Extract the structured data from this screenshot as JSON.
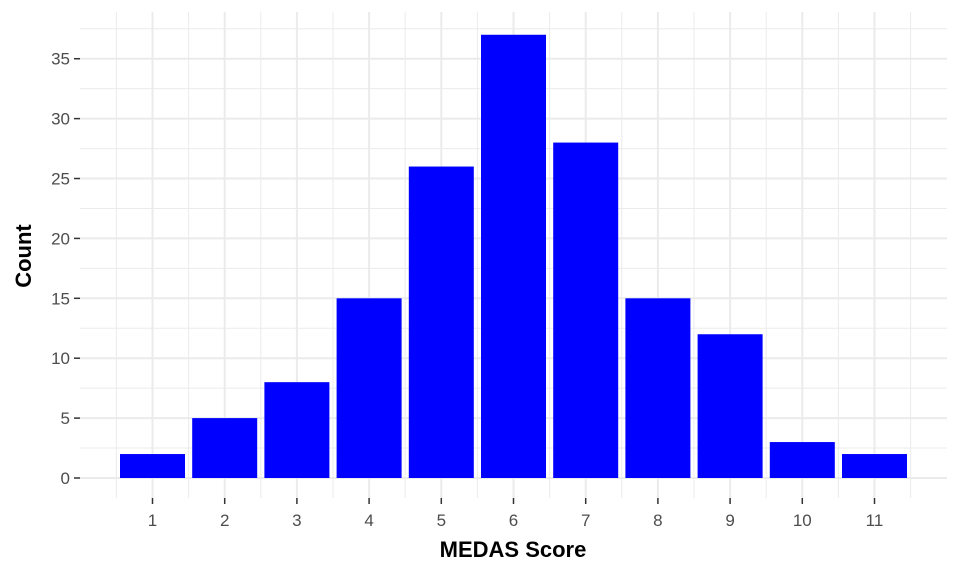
{
  "chart_data": {
    "type": "bar",
    "title": "",
    "xlabel": "MEDAS Score",
    "ylabel": "Count",
    "categories": [
      "1",
      "2",
      "3",
      "4",
      "5",
      "6",
      "7",
      "8",
      "9",
      "10",
      "11"
    ],
    "values": [
      2,
      5,
      8,
      15,
      26,
      37,
      28,
      15,
      12,
      3,
      2
    ],
    "ylim": [
      0,
      38.9
    ],
    "yticks": [
      0,
      5,
      10,
      15,
      20,
      25,
      30,
      35
    ],
    "grid": true,
    "legend": "none",
    "bar_color": "#0000ff",
    "grid_color": "#ebebeb"
  }
}
